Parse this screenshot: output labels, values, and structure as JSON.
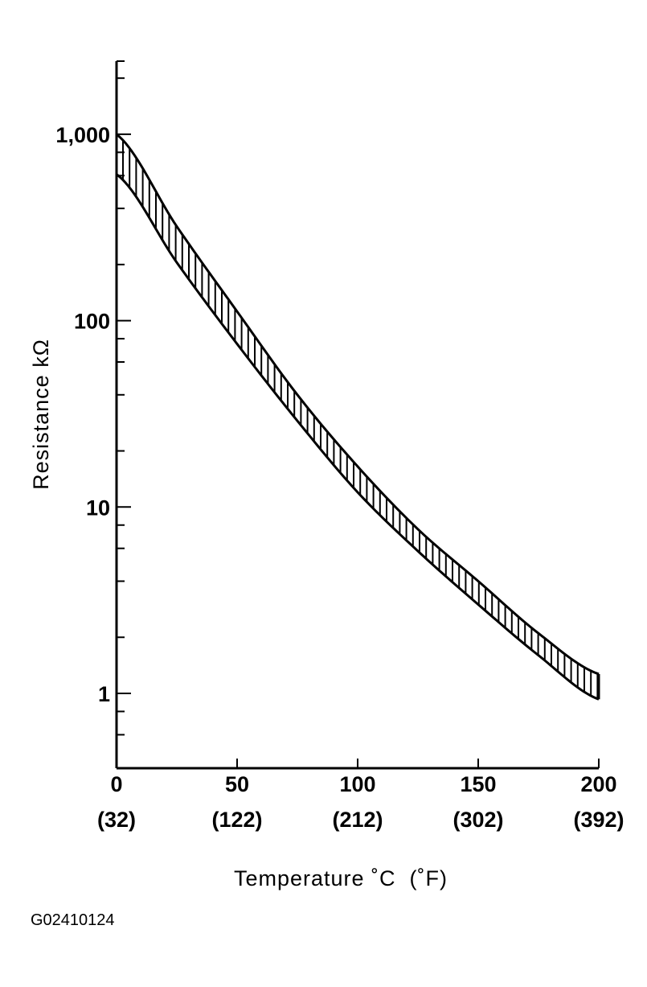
{
  "chart_data": {
    "type": "area",
    "title": "",
    "xlabel": "Temperature ˚C  (˚F)",
    "ylabel": "Resistance kΩ",
    "x_scale": "linear",
    "y_scale": "log",
    "xlim": [
      0,
      200
    ],
    "ylim": [
      0.4,
      2500
    ],
    "grid": false,
    "x_ticks": [
      {
        "value": 0,
        "label": "0",
        "sublabel": "(32)"
      },
      {
        "value": 50,
        "label": "50",
        "sublabel": "(122)"
      },
      {
        "value": 100,
        "label": "100",
        "sublabel": "(212)"
      },
      {
        "value": 150,
        "label": "150",
        "sublabel": "(302)"
      },
      {
        "value": 200,
        "label": "200",
        "sublabel": "(392)"
      }
    ],
    "y_ticks": [
      {
        "value": 1,
        "label": "1"
      },
      {
        "value": 10,
        "label": "10"
      },
      {
        "value": 100,
        "label": "100"
      },
      {
        "value": 1000,
        "label": "1,000"
      }
    ],
    "fill_pattern": "vertical-hatch",
    "x": [
      0,
      25,
      50,
      75,
      100,
      125,
      150,
      175,
      200
    ],
    "series": [
      {
        "values": [
          1000,
          320,
          112,
          40,
          16.5,
          7.6,
          4.0,
          2.1,
          1.27
        ]
      },
      {
        "values": [
          610,
          205,
          75,
          29,
          12,
          5.8,
          3.0,
          1.6,
          0.93
        ]
      }
    ]
  },
  "figure_id": "G02410124"
}
